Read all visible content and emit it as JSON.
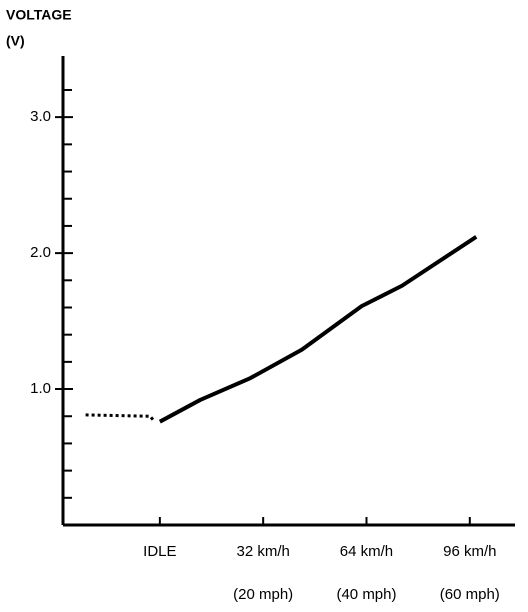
{
  "chart_data": {
    "type": "line",
    "y_label": [
      "VOLTAGE",
      "(V)"
    ],
    "xlim": [
      -30,
      110
    ],
    "ylim": [
      0,
      3.45
    ],
    "xticks": [
      {
        "value": 0,
        "label": "IDLE"
      },
      {
        "value": 32,
        "label": "32 km/h"
      },
      {
        "value": 64,
        "label": "64 km/h"
      },
      {
        "value": 96,
        "label": "96 km/h"
      }
    ],
    "xtick_sublabels": [
      null,
      "(20 mph)",
      "(40 mph)",
      "(60 mph)"
    ],
    "yticks": [
      {
        "value": 1,
        "label": "1.0"
      },
      {
        "value": 2,
        "label": "2.0"
      },
      {
        "value": 3,
        "label": "3.0"
      }
    ],
    "yticks_minor": [
      0.2,
      0.4,
      0.6,
      0.8,
      1.2,
      1.4,
      1.6,
      1.8,
      2.2,
      2.4,
      2.6,
      2.8,
      3.2
    ],
    "series": [
      {
        "style": "dotted",
        "color": "#000000",
        "x": [
          -23,
          -3,
          -2
        ],
        "values": [
          0.81,
          0.8,
          0.77
        ]
      },
      {
        "style": "solid",
        "color": "#000000",
        "x": [
          0,
          12.5,
          28,
          44,
          62.5,
          75,
          98
        ],
        "values": [
          0.76,
          0.92,
          1.08,
          1.29,
          1.61,
          1.76,
          2.12
        ]
      }
    ]
  }
}
